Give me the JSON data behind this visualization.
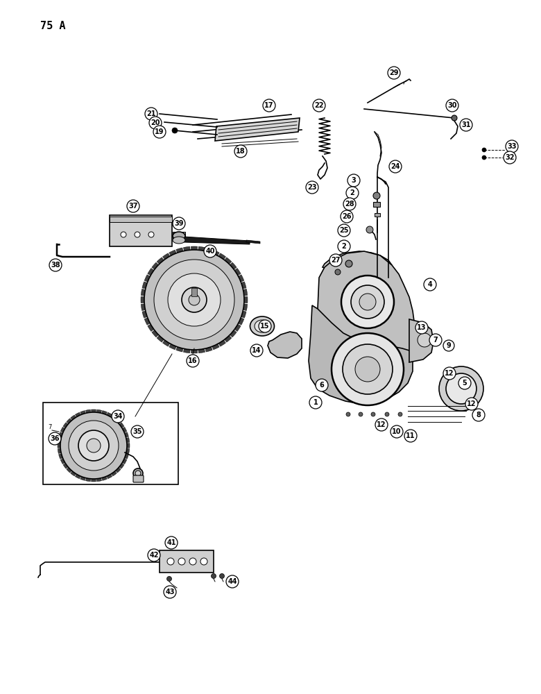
{
  "page_label": "75 A",
  "bg": "#ffffff",
  "lc": "#000000",
  "figsize": [
    7.8,
    10.0
  ],
  "dpi": 100
}
